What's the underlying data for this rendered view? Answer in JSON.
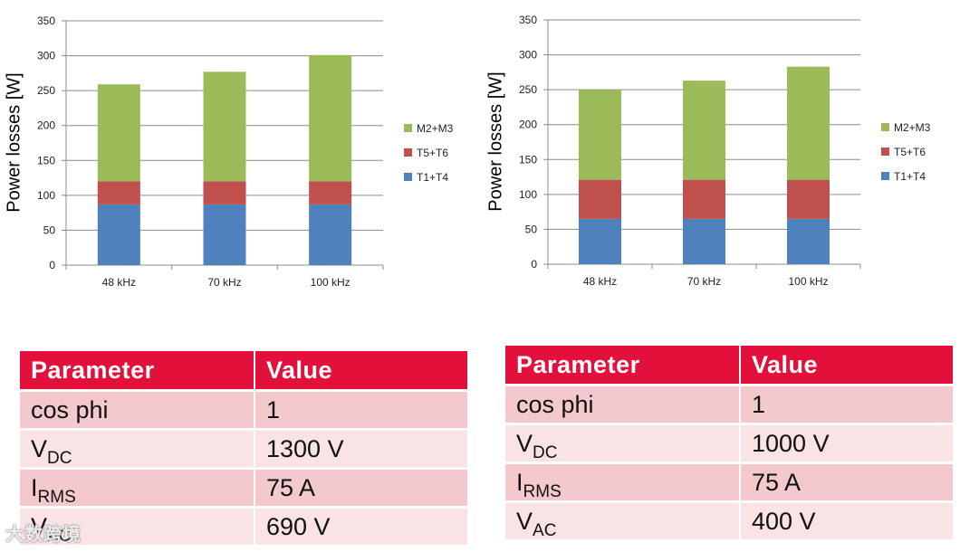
{
  "chart_data": [
    {
      "type": "bar",
      "stacked": true,
      "ylabel": "Power losses [W]",
      "ylim": [
        0,
        350
      ],
      "yticks": [
        0,
        50,
        100,
        150,
        200,
        250,
        300,
        350
      ],
      "categories": [
        "48 kHz",
        "70 kHz",
        "100 kHz"
      ],
      "series": [
        {
          "name": "T1+T4",
          "color": "#4f81bd",
          "values": [
            87,
            87,
            87
          ]
        },
        {
          "name": "T5+T6",
          "color": "#c0504d",
          "values": [
            33,
            33,
            33
          ]
        },
        {
          "name": "M2+M3",
          "color": "#9bbb59",
          "values": [
            139,
            157,
            181
          ]
        }
      ],
      "legend_position": "right"
    },
    {
      "type": "bar",
      "stacked": true,
      "ylabel": "Power losses [W]",
      "ylim": [
        0,
        350
      ],
      "yticks": [
        0,
        50,
        100,
        150,
        200,
        250,
        300,
        350
      ],
      "categories": [
        "48 kHz",
        "70 kHz",
        "100 kHz"
      ],
      "series": [
        {
          "name": "T1+T4",
          "color": "#4f81bd",
          "values": [
            65,
            65,
            65
          ]
        },
        {
          "name": "T5+T6",
          "color": "#c0504d",
          "values": [
            56,
            56,
            56
          ]
        },
        {
          "name": "M2+M3",
          "color": "#9bbb59",
          "values": [
            129,
            142,
            162
          ]
        }
      ],
      "legend_position": "right"
    }
  ],
  "tables": [
    {
      "header": {
        "param": "Parameter",
        "value": "Value"
      },
      "rows": [
        {
          "param": "cos phi",
          "sub": "",
          "value": "1"
        },
        {
          "param": "V",
          "sub": "DC",
          "value": "1300 V"
        },
        {
          "param": "I",
          "sub": "RMS",
          "value": "75 A"
        },
        {
          "param": "V",
          "sub": "AC",
          "value": "690 V"
        }
      ]
    },
    {
      "header": {
        "param": "Parameter",
        "value": "Value"
      },
      "rows": [
        {
          "param": "cos phi",
          "sub": "",
          "value": "1"
        },
        {
          "param": "V",
          "sub": "DC",
          "value": "1000 V"
        },
        {
          "param": "I",
          "sub": "RMS",
          "value": "75 A"
        },
        {
          "param": "V",
          "sub": "AC",
          "value": "400 V"
        }
      ]
    }
  ],
  "watermark": "大数跨境"
}
